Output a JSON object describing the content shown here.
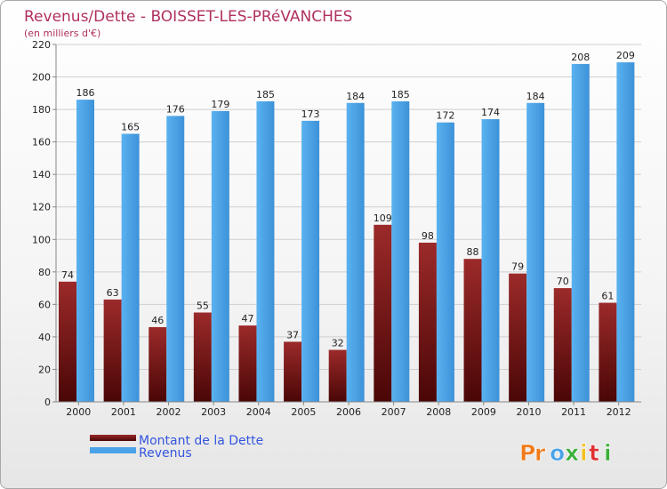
{
  "chart_data": {
    "type": "bar",
    "title": "Revenus/Dette - BOISSET-LES-PRéVANCHES",
    "subtitle": "(en milliers d'€)",
    "categories": [
      "2000",
      "2001",
      "2002",
      "2003",
      "2004",
      "2005",
      "2006",
      "2007",
      "2008",
      "2009",
      "2010",
      "2011",
      "2012"
    ],
    "series": [
      {
        "name": "Montant de la Dette",
        "color": "#8b1a1a",
        "values": [
          74,
          63,
          46,
          55,
          47,
          37,
          32,
          109,
          98,
          88,
          79,
          70,
          61
        ]
      },
      {
        "name": "Revenus",
        "color": "#4aa3e8",
        "values": [
          186,
          165,
          176,
          179,
          185,
          173,
          184,
          185,
          172,
          174,
          184,
          208,
          209
        ]
      }
    ],
    "ylim": [
      0,
      220
    ],
    "yticks": [
      0,
      20,
      40,
      60,
      80,
      100,
      120,
      140,
      160,
      180,
      200,
      220
    ],
    "grid": true,
    "legend": "bottom-left",
    "xlabel": "",
    "ylabel": ""
  },
  "branding": {
    "logo_text": "Proxiti"
  }
}
